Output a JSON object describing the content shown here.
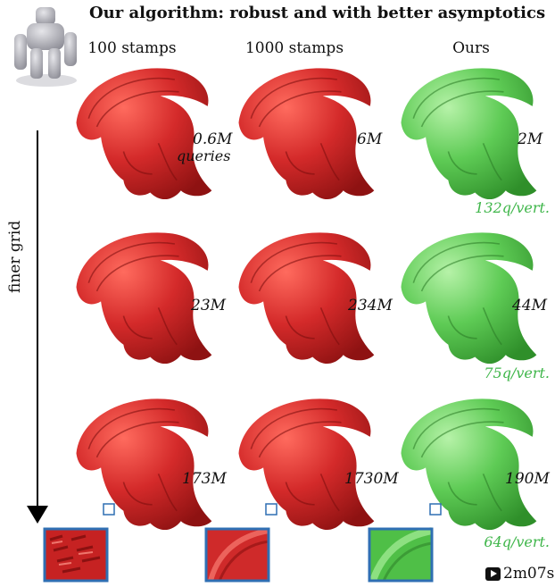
{
  "title": "Our algorithm: robust and with better asymptotics",
  "columns": [
    "100 stamps",
    "1000 stamps",
    "Ours"
  ],
  "axis_label": "finer grid",
  "rows": [
    {
      "queries": [
        "0.6M",
        "6M",
        "2M"
      ],
      "queries_sub": "queries",
      "per_vertex": "132q/vert."
    },
    {
      "queries": [
        "23M",
        "234M",
        "44M"
      ],
      "per_vertex": "75q/vert."
    },
    {
      "queries": [
        "173M",
        "1730M",
        "190M"
      ],
      "per_vertex": "64q/vert."
    }
  ],
  "timer": "2m07s",
  "colors": {
    "baseline": "#d42a2a",
    "ours": "#5ecb55",
    "highlight": "#3fb64a",
    "zoom_border": "#2f6fb3"
  },
  "icons": {
    "input_model": "robot-figure",
    "timer": "play-icon",
    "axis": "arrow-down-icon"
  }
}
